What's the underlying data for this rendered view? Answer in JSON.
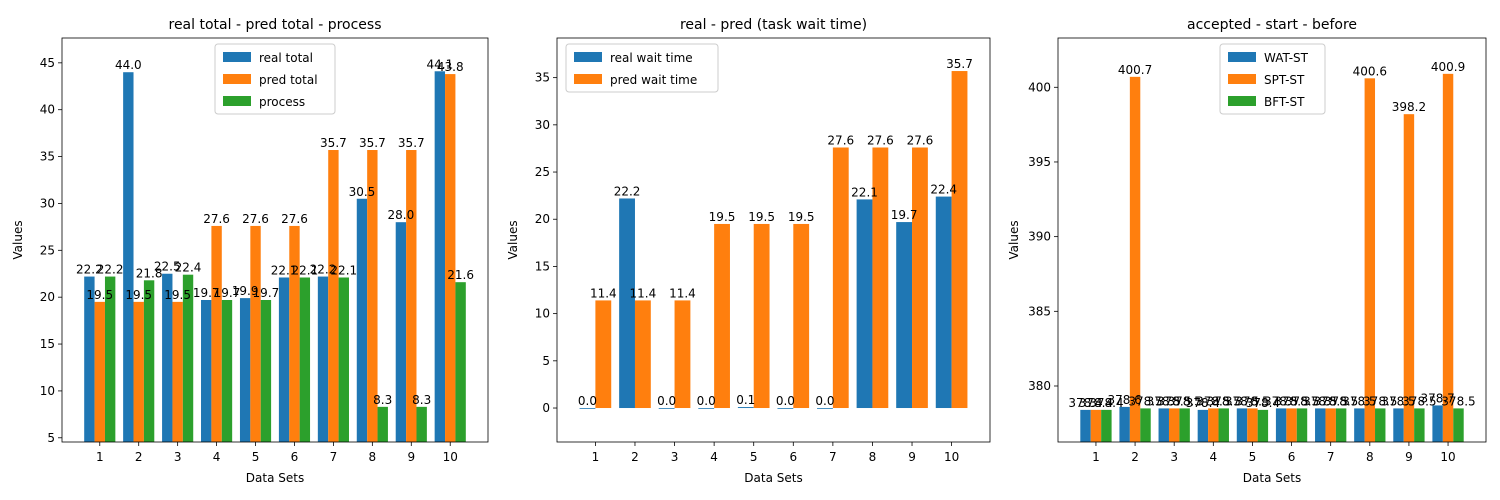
{
  "colors": {
    "blue": "#1f77b4",
    "orange": "#ff7f0e",
    "green": "#2ca02c"
  },
  "chart_data": [
    {
      "type": "bar",
      "title": "real total - pred total - process",
      "xlabel": "Data Sets",
      "ylabel": "Values",
      "categories": [
        "1",
        "2",
        "3",
        "4",
        "5",
        "6",
        "7",
        "8",
        "9",
        "10"
      ],
      "ylim": [
        4.55,
        47.65
      ],
      "yticks": [
        5,
        10,
        15,
        20,
        25,
        30,
        35,
        40,
        45
      ],
      "legend_position": "upper center",
      "series": [
        {
          "name": "real total",
          "color": "#1f77b4",
          "values": [
            22.2,
            44.0,
            22.5,
            19.7,
            19.9,
            22.1,
            22.2,
            30.5,
            28.0,
            44.1
          ],
          "labels": [
            "22.2",
            "44.0",
            "22.5",
            "19.7",
            "19.9",
            "22.1",
            "22.2",
            "30.5",
            "28.0",
            "44.1"
          ]
        },
        {
          "name": "pred total",
          "color": "#ff7f0e",
          "values": [
            19.5,
            19.5,
            19.5,
            27.6,
            27.6,
            27.6,
            35.7,
            35.7,
            35.7,
            43.8
          ],
          "labels": [
            "19.5",
            "19.5",
            "19.5",
            "27.6",
            "27.6",
            "27.6",
            "35.7",
            "35.7",
            "35.7",
            "43.8"
          ]
        },
        {
          "name": "process",
          "color": "#2ca02c",
          "values": [
            22.2,
            21.8,
            22.4,
            19.7,
            19.7,
            22.1,
            22.1,
            8.3,
            8.3,
            21.6
          ],
          "labels": [
            "22.2",
            "21.8",
            "22.4",
            "19.7",
            "19.7",
            "22.1",
            "22.1",
            "8.3",
            "8.3",
            "21.6"
          ]
        }
      ]
    },
    {
      "type": "bar",
      "title": "real - pred (task wait time)",
      "xlabel": "Data Sets",
      "ylabel": "Values",
      "categories": [
        "1",
        "2",
        "3",
        "4",
        "5",
        "6",
        "7",
        "8",
        "9",
        "10"
      ],
      "ylim": [
        -3.6,
        39.2
      ],
      "yticks": [
        0,
        5,
        10,
        15,
        20,
        25,
        30,
        35
      ],
      "legend_position": "upper left",
      "series": [
        {
          "name": "real wait time",
          "color": "#1f77b4",
          "values": [
            0.0,
            22.2,
            0.0,
            0.0,
            0.1,
            0.0,
            0.0,
            22.1,
            19.7,
            22.4
          ],
          "labels": [
            "0.0",
            "22.2",
            "0.0",
            "0.0",
            "0.1",
            "0.0",
            "0.0",
            "22.1",
            "19.7",
            "22.4"
          ]
        },
        {
          "name": "pred wait time",
          "color": "#ff7f0e",
          "values": [
            11.4,
            11.4,
            11.4,
            19.5,
            19.5,
            19.5,
            27.6,
            27.6,
            27.6,
            35.7
          ],
          "labels": [
            "11.4",
            "11.4",
            "11.4",
            "19.5",
            "19.5",
            "19.5",
            "27.6",
            "27.6",
            "27.6",
            "35.7"
          ]
        }
      ]
    },
    {
      "type": "bar",
      "title": "accepted - start - before",
      "xlabel": "Data Sets",
      "ylabel": "Values",
      "categories": [
        "1",
        "2",
        "3",
        "4",
        "5",
        "6",
        "7",
        "8",
        "9",
        "10"
      ],
      "ylim": [
        376.25,
        403.3
      ],
      "yticks": [
        380,
        385,
        390,
        395,
        400
      ],
      "legend_position": "upper center",
      "series": [
        {
          "name": "WAT-ST",
          "color": "#1f77b4",
          "values": [
            378.4,
            378.6,
            378.5,
            378.4,
            378.5,
            378.5,
            378.5,
            378.5,
            378.5,
            378.7
          ],
          "labels": [
            "378.4",
            "378.6",
            "378.5",
            "378.4",
            "378.5",
            "378.5",
            "378.5",
            "378.5",
            "378.5",
            "378.7"
          ]
        },
        {
          "name": "SPT-ST",
          "color": "#ff7f0e",
          "values": [
            378.4,
            400.7,
            378.5,
            378.5,
            378.5,
            378.5,
            378.5,
            400.6,
            398.2,
            400.9
          ],
          "labels": [
            "378.4",
            "400.7",
            "378.5",
            "378.5",
            "378.5",
            "378.5",
            "378.5",
            "400.6",
            "398.2",
            "400.9"
          ]
        },
        {
          "name": "BFT-ST",
          "color": "#2ca02c",
          "values": [
            378.4,
            378.5,
            378.5,
            378.5,
            378.4,
            378.5,
            378.5,
            378.5,
            378.5,
            378.5
          ],
          "labels": [
            "378.4",
            "378.5",
            "378.5",
            "378.5",
            "378.4",
            "378.5",
            "378.5",
            "378.5",
            "378.5",
            "378.5"
          ]
        }
      ]
    }
  ]
}
